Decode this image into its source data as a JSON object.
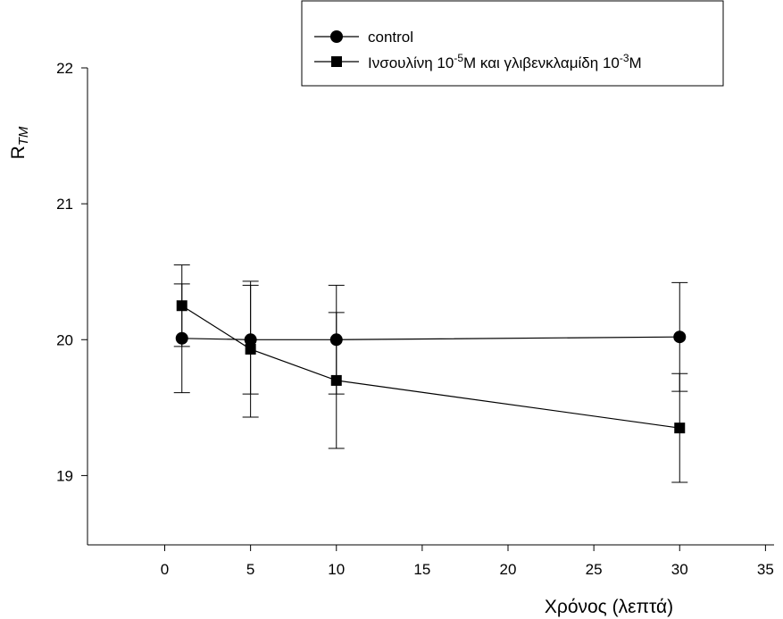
{
  "chart_data": {
    "type": "line",
    "title": "",
    "xlabel": "Χρόνος (λεπτά)",
    "ylabel": {
      "main": "R",
      "sub": "TM"
    },
    "xlim": [
      -4.5,
      35.5
    ],
    "ylim": [
      18.49,
      22
    ],
    "x_ticks": [
      0,
      5,
      10,
      15,
      20,
      25,
      30,
      35
    ],
    "y_ticks": [
      19,
      20,
      21,
      22
    ],
    "grid": false,
    "legend_position": "top-right",
    "series": [
      {
        "name": "control",
        "marker": "circle",
        "color": "#000000",
        "x": [
          1,
          5,
          10,
          30
        ],
        "y": [
          20.01,
          20.0,
          20.0,
          20.02
        ],
        "error": [
          0.4,
          0.4,
          0.4,
          0.4
        ]
      },
      {
        "name_parts": {
          "a": "Ινσουλίνη 10",
          "b": "-5",
          "c": "M και γλιβενκλαμίδη 10",
          "d": "-3",
          "e": "M"
        },
        "marker": "square",
        "color": "#000000",
        "x": [
          1,
          5,
          10,
          30
        ],
        "y": [
          20.25,
          19.93,
          19.7,
          19.35
        ],
        "error": [
          0.3,
          0.5,
          0.5,
          0.4
        ]
      }
    ]
  }
}
